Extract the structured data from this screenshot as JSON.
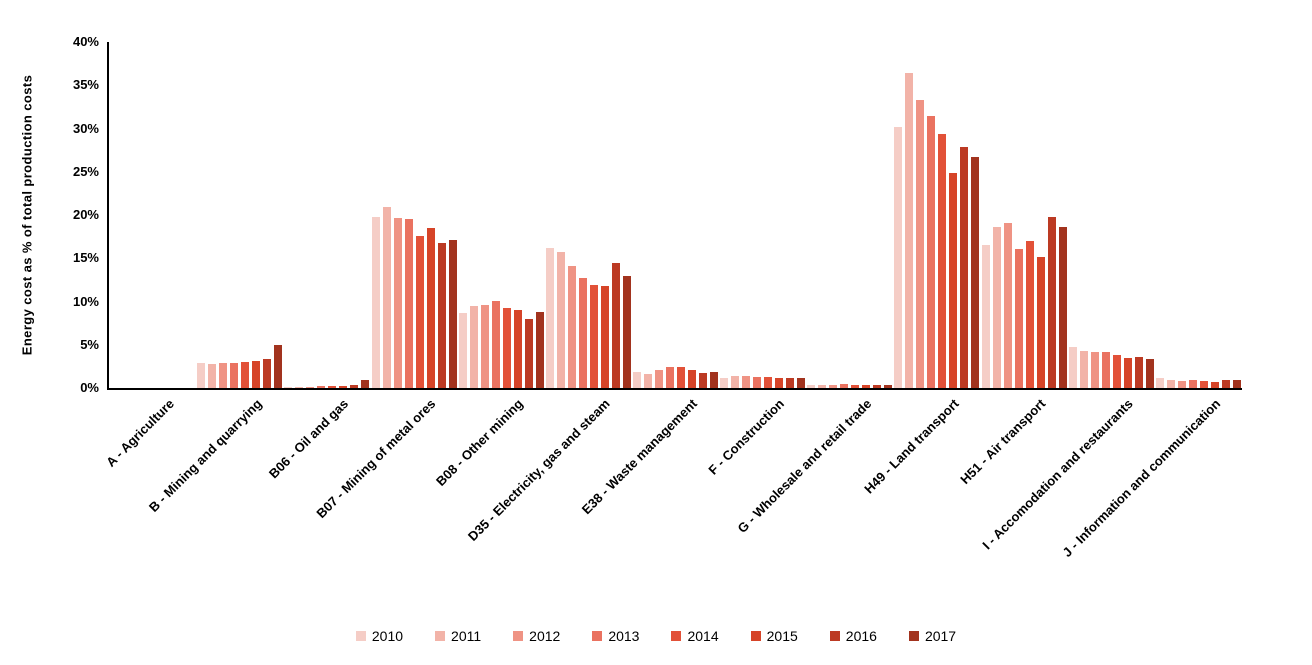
{
  "chart_data": {
    "type": "bar",
    "title": "",
    "xlabel": "",
    "ylabel": "Energy cost as % of total production costs",
    "ylim": [
      0,
      40
    ],
    "ytick_step": 5,
    "ytick_suffix": "%",
    "grid": false,
    "legend_position": "bottom",
    "categories": [
      "A - Agriculture",
      "B - Mining and quarrying",
      "B06 - Oil and gas",
      "B07 - Mining of metal ores",
      "B08 - Other mining",
      "D35 - Electricity, gas and steam",
      "E38 - Waste management",
      "F - Construction",
      "G - Wholesale and retail trade",
      "H49 - Land transport",
      "H51 - Air transport",
      "I - Accomodation and restaurants",
      "J - Information and communication"
    ],
    "series": [
      {
        "name": "2010",
        "color": "#F5CDC6",
        "values": [
          0,
          2.9,
          0.1,
          19.8,
          8.7,
          16.2,
          1.9,
          1.2,
          0.3,
          30.2,
          16.5,
          4.7,
          1.1
        ]
      },
      {
        "name": "2011",
        "color": "#F2B3A8",
        "values": [
          0,
          2.8,
          0.1,
          20.9,
          9.5,
          15.7,
          1.6,
          1.4,
          0.3,
          36.4,
          18.6,
          4.3,
          0.9
        ]
      },
      {
        "name": "2012",
        "color": "#EF9384",
        "values": [
          0,
          2.9,
          0.1,
          19.7,
          9.6,
          14.1,
          2.1,
          1.4,
          0.4,
          33.3,
          19.1,
          4.2,
          0.8
        ]
      },
      {
        "name": "2013",
        "color": "#EA7260",
        "values": [
          0,
          2.9,
          0.2,
          19.5,
          10.0,
          12.7,
          2.4,
          1.3,
          0.5,
          31.4,
          16.1,
          4.2,
          0.9
        ]
      },
      {
        "name": "2014",
        "color": "#E25138",
        "values": [
          0,
          3.0,
          0.2,
          17.6,
          9.3,
          11.9,
          2.4,
          1.3,
          0.4,
          29.4,
          17.0,
          3.8,
          0.8
        ]
      },
      {
        "name": "2015",
        "color": "#D64428",
        "values": [
          0,
          3.1,
          0.2,
          18.5,
          9.0,
          11.8,
          2.1,
          1.2,
          0.4,
          24.9,
          15.2,
          3.5,
          0.7
        ]
      },
      {
        "name": "2016",
        "color": "#BC3A23",
        "values": [
          0,
          3.3,
          0.3,
          16.8,
          8.0,
          14.5,
          1.7,
          1.1,
          0.4,
          27.9,
          19.8,
          3.6,
          0.9
        ]
      },
      {
        "name": "2017",
        "color": "#A2331E",
        "values": [
          0,
          5.0,
          0.9,
          17.1,
          8.8,
          13.0,
          1.8,
          1.1,
          0.4,
          26.7,
          18.6,
          3.4,
          0.9
        ]
      }
    ]
  }
}
